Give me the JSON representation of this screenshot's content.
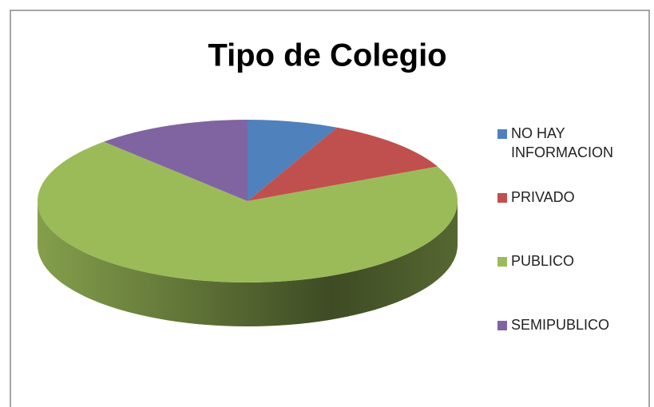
{
  "chart_data": {
    "type": "pie",
    "title": "Tipo de Colegio",
    "categories": [
      "NO HAY INFORMACION",
      "PRIVADO",
      "PUBLICO",
      "SEMIPUBLICO"
    ],
    "values": [
      7,
      11,
      70,
      12
    ],
    "colors": [
      "#4f81bd",
      "#c0504d",
      "#9bbb59",
      "#8064a2"
    ],
    "legend": "right"
  }
}
